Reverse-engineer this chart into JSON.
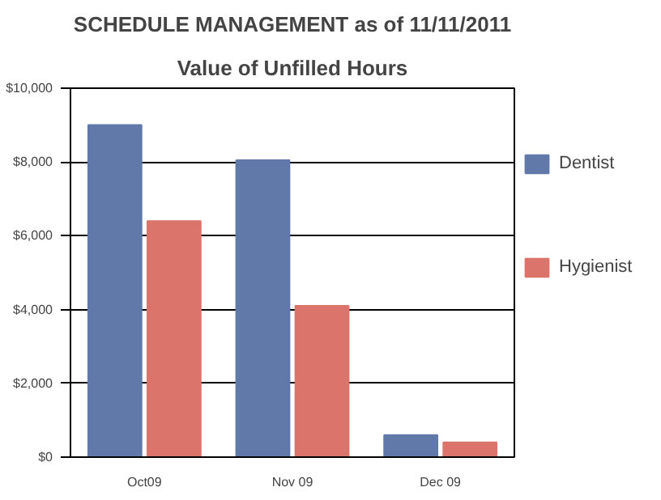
{
  "chart_data": {
    "type": "bar",
    "title": "SCHEDULE MANAGEMENT as of 11/11/2011",
    "subtitle": "Value of Unfilled Hours",
    "categories": [
      "Oct09",
      "Nov 09",
      "Dec 09"
    ],
    "series": [
      {
        "name": "Dentist",
        "color": "#6079a8",
        "values": [
          9000,
          8050,
          600
        ]
      },
      {
        "name": "Hygienist",
        "color": "#db756b",
        "values": [
          6400,
          4100,
          400
        ]
      }
    ],
    "ylim": [
      0,
      10000
    ],
    "yticks": [
      {
        "value": 0,
        "label": "$0"
      },
      {
        "value": 2000,
        "label": "$2,000"
      },
      {
        "value": 4000,
        "label": "$4,000"
      },
      {
        "value": 6000,
        "label": "$6,000"
      },
      {
        "value": 8000,
        "label": "$8,000"
      },
      {
        "value": 10000,
        "label": "$10,000"
      }
    ],
    "grid": "y",
    "legend": "right"
  }
}
